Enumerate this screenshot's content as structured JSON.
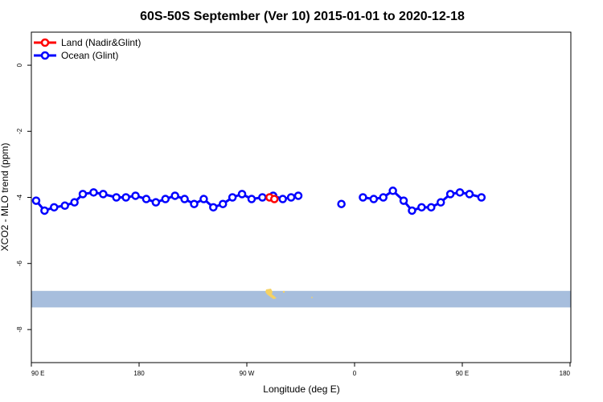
{
  "chart_data": {
    "type": "line",
    "title": "60S-50S September (Ver 10)   2015-01-01 to 2020-12-18",
    "xlabel": "Longitude (deg E)",
    "ylabel": "XCO2 - MLO trend (ppm)",
    "x_axis_type": "longitude, 90 E to 180 wrapping through 90 W and 0 to 90 E and 180",
    "xlim": [
      90,
      450
    ],
    "ylim": [
      -9,
      1
    ],
    "x_ticks": [
      {
        "value": 90,
        "label": "90 E"
      },
      {
        "value": 180,
        "label": "180"
      },
      {
        "value": 270,
        "label": "90 W"
      },
      {
        "value": 360,
        "label": "0"
      },
      {
        "value": 450,
        "label": "90 E"
      },
      {
        "value": 540,
        "label": "180"
      }
    ],
    "y_ticks": [
      {
        "value": 0,
        "label": "0"
      },
      {
        "value": -2,
        "label": "-2"
      },
      {
        "value": -4,
        "label": "-4"
      },
      {
        "value": -6,
        "label": "-6"
      },
      {
        "value": -8,
        "label": "-8"
      }
    ],
    "legend_position": "top-left",
    "grid": false,
    "series": [
      {
        "name": "Land (Nadir&Glint)",
        "color": "#ff0000",
        "segments": [
          [
            [
              289,
              -4.0
            ],
            [
              293,
              -4.05
            ]
          ]
        ]
      },
      {
        "name": "Ocean (Glint)",
        "color": "#0000ff",
        "segments": [
          [
            [
              94,
              -4.1
            ],
            [
              101,
              -4.4
            ],
            [
              109,
              -4.3
            ],
            [
              118,
              -4.25
            ],
            [
              126,
              -4.15
            ],
            [
              133,
              -3.9
            ],
            [
              142,
              -3.85
            ],
            [
              150,
              -3.9
            ],
            [
              161,
              -4.0
            ],
            [
              169,
              -4.0
            ],
            [
              177,
              -3.95
            ],
            [
              186,
              -4.05
            ],
            [
              194,
              -4.15
            ],
            [
              202,
              -4.05
            ],
            [
              210,
              -3.95
            ],
            [
              218,
              -4.05
            ],
            [
              226,
              -4.2
            ],
            [
              234,
              -4.05
            ],
            [
              242,
              -4.3
            ],
            [
              250,
              -4.2
            ],
            [
              258,
              -4.0
            ],
            [
              266,
              -3.9
            ],
            [
              274,
              -4.05
            ],
            [
              283,
              -4.0
            ],
            [
              292,
              -3.95
            ],
            [
              300,
              -4.05
            ],
            [
              307,
              -4.0
            ],
            [
              313,
              -3.95
            ]
          ],
          [
            [
              349,
              -4.2
            ]
          ],
          [
            [
              367,
              -4.0
            ],
            [
              376,
              -4.05
            ],
            [
              384,
              -4.0
            ],
            [
              392,
              -3.8
            ],
            [
              401,
              -4.1
            ],
            [
              408,
              -4.4
            ],
            [
              416,
              -4.3
            ],
            [
              424,
              -4.3
            ],
            [
              432,
              -4.15
            ],
            [
              440,
              -3.9
            ],
            [
              448,
              -3.85
            ],
            [
              456,
              -3.9
            ],
            [
              466,
              -4.0
            ]
          ]
        ]
      }
    ],
    "annotations": {
      "map_strip": {
        "color": "#a7bedd",
        "y_range": [
          -7.33,
          -6.83
        ],
        "land_color": "#f5d264"
      }
    }
  }
}
